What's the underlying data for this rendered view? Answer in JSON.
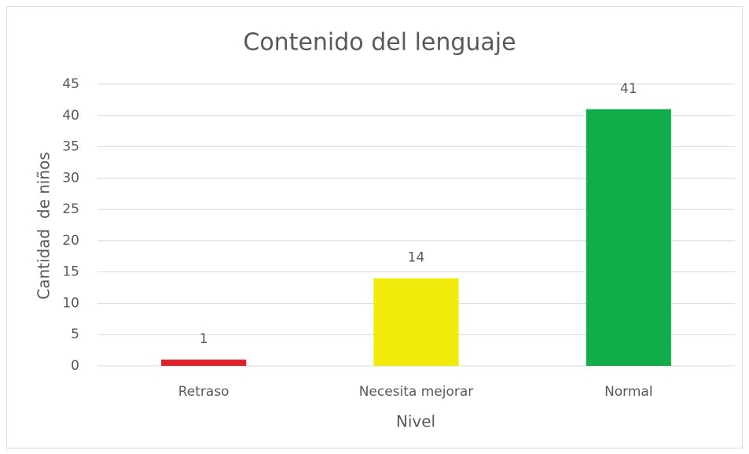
{
  "chart_data": {
    "type": "bar",
    "title": "Contenido del lenguaje",
    "x_label": "Nivel",
    "y_label": "Cantidad  de niños",
    "categories": [
      "Retraso",
      "Necesita mejorar",
      "Normal"
    ],
    "values": [
      1,
      14,
      41
    ],
    "colors": [
      "#e32028",
      "#f2ea0b",
      "#12ad4b"
    ],
    "ylim": [
      0,
      45
    ],
    "yticks": [
      0,
      5,
      10,
      15,
      20,
      25,
      30,
      35,
      40,
      45
    ],
    "grid": true
  }
}
